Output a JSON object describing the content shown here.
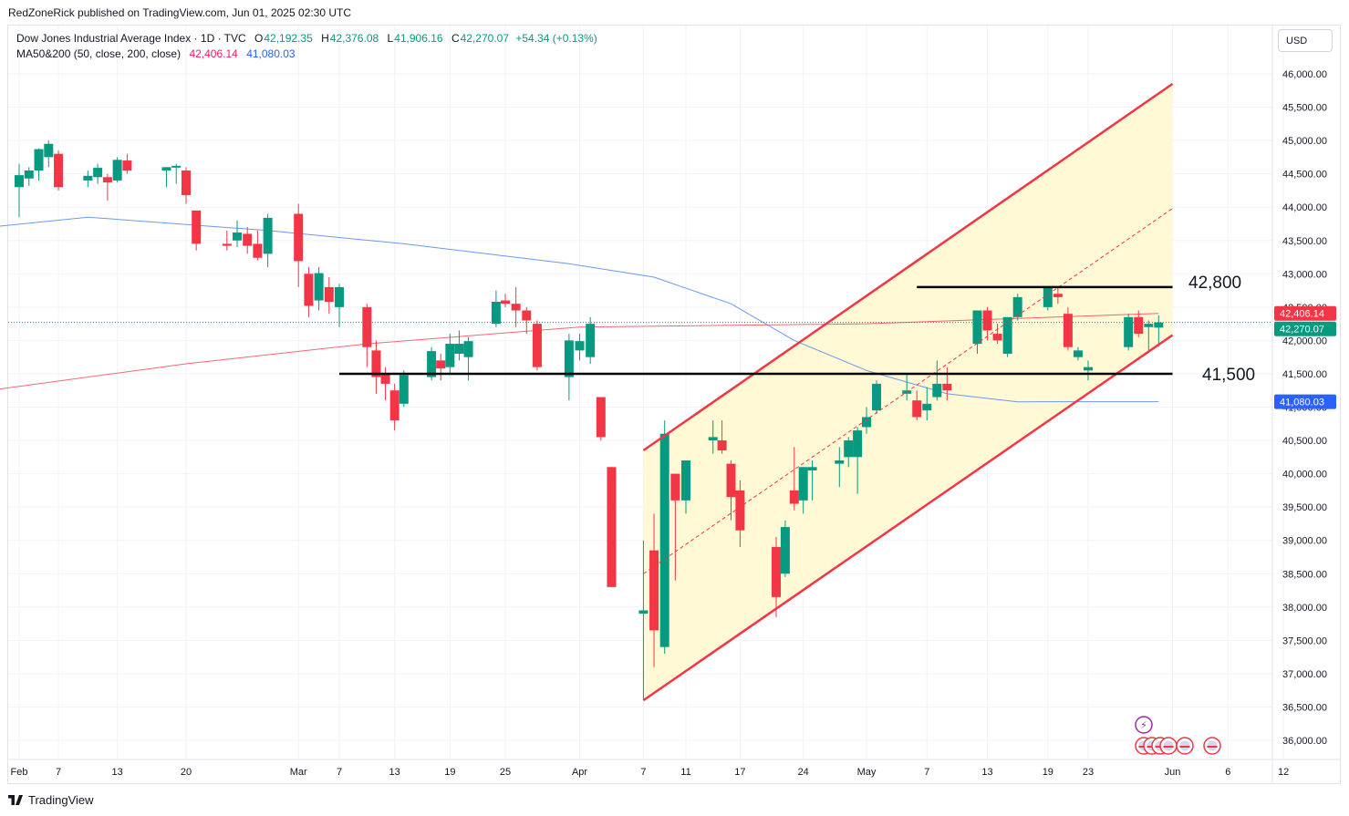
{
  "publisher_line": "RedZoneRick published on TradingView.com, Jun 01, 2025 02:30 UTC",
  "legend": {
    "symbol": "Dow Jones Industrial Average Index · 1D · TVC",
    "open_label": "O",
    "open": "42,192.35",
    "high_label": "H",
    "high": "42,376.08",
    "low_label": "L",
    "low": "41,906.16",
    "close_label": "C",
    "close": "42,270.07",
    "change": "+54.34 (+0.13%)",
    "ma_label": "MA50&200 (50, close, 200, close)",
    "ma200_value": "42,406.14",
    "ma50_value": "41,080.03"
  },
  "currency": "USD",
  "footer_logo": "TradingView",
  "colors": {
    "up": "#089981",
    "down": "#f23645",
    "ma200": "#f23645",
    "ma50": "#5b8def",
    "channel": "#f23645",
    "channel_fill": "#fff9d6"
  },
  "chart_data": {
    "type": "candlestick",
    "title": "Dow Jones Industrial Average Index · 1D · TVC",
    "ylim": [
      35900,
      46300
    ],
    "y_ticks": [
      36000,
      36500,
      37000,
      37500,
      38000,
      38500,
      39000,
      39500,
      40000,
      40500,
      41000,
      41500,
      42000,
      42500,
      43000,
      43500,
      44000,
      44500,
      45000,
      45500,
      46000
    ],
    "y_tick_labels": [
      "36,000.00",
      "36,500.00",
      "37,000.00",
      "37,500.00",
      "38,000.00",
      "38,500.00",
      "39,000.00",
      "39,500.00",
      "40,000.00",
      "40,500.00",
      "41,000.00",
      "41,500.00",
      "42,000.00",
      "42,500.00",
      "43,000.00",
      "43,500.00",
      "44,000.00",
      "44,500.00",
      "45,000.00",
      "45,500.00",
      "46,000.00"
    ],
    "x_ticks": [
      {
        "label": "Feb",
        "date": "2025-02-03"
      },
      {
        "label": "7",
        "date": "2025-02-07"
      },
      {
        "label": "13",
        "date": "2025-02-13"
      },
      {
        "label": "20",
        "date": "2025-02-20"
      },
      {
        "label": "Mar",
        "date": "2025-03-03"
      },
      {
        "label": "7",
        "date": "2025-03-07"
      },
      {
        "label": "13",
        "date": "2025-03-13"
      },
      {
        "label": "19",
        "date": "2025-03-19"
      },
      {
        "label": "25",
        "date": "2025-03-25"
      },
      {
        "label": "Apr",
        "date": "2025-04-01"
      },
      {
        "label": "7",
        "date": "2025-04-07"
      },
      {
        "label": "11",
        "date": "2025-04-11"
      },
      {
        "label": "17",
        "date": "2025-04-17"
      },
      {
        "label": "24",
        "date": "2025-04-24"
      },
      {
        "label": "May",
        "date": "2025-05-01"
      },
      {
        "label": "7",
        "date": "2025-05-07"
      },
      {
        "label": "13",
        "date": "2025-05-13"
      },
      {
        "label": "19",
        "date": "2025-05-19"
      },
      {
        "label": "23",
        "date": "2025-05-23"
      },
      {
        "label": "Jun",
        "date": "2025-06-02"
      },
      {
        "label": "6",
        "date": "2025-06-06"
      },
      {
        "label": "12",
        "date": "2025-06-12"
      }
    ],
    "candles": [
      {
        "d": "2025-02-03",
        "o": 44300,
        "h": 44650,
        "l": 43850,
        "c": 44480
      },
      {
        "d": "2025-02-04",
        "o": 44430,
        "h": 44600,
        "l": 44320,
        "c": 44550
      },
      {
        "d": "2025-02-05",
        "o": 44550,
        "h": 44880,
        "l": 44400,
        "c": 44870
      },
      {
        "d": "2025-02-06",
        "o": 44750,
        "h": 45000,
        "l": 44600,
        "c": 44950
      },
      {
        "d": "2025-02-07",
        "o": 44800,
        "h": 44850,
        "l": 44250,
        "c": 44300
      },
      {
        "d": "2025-02-10",
        "o": 44400,
        "h": 44550,
        "l": 44300,
        "c": 44470
      },
      {
        "d": "2025-02-11",
        "o": 44450,
        "h": 44650,
        "l": 44350,
        "c": 44590
      },
      {
        "d": "2025-02-12",
        "o": 44450,
        "h": 44500,
        "l": 44100,
        "c": 44370
      },
      {
        "d": "2025-02-13",
        "o": 44400,
        "h": 44750,
        "l": 44370,
        "c": 44710
      },
      {
        "d": "2025-02-14",
        "o": 44700,
        "h": 44800,
        "l": 44500,
        "c": 44550
      },
      {
        "d": "2025-02-18",
        "o": 44550,
        "h": 44600,
        "l": 44300,
        "c": 44600
      },
      {
        "d": "2025-02-19",
        "o": 44600,
        "h": 44650,
        "l": 44350,
        "c": 44620
      },
      {
        "d": "2025-02-20",
        "o": 44550,
        "h": 44600,
        "l": 44050,
        "c": 44180
      },
      {
        "d": "2025-02-21",
        "o": 43950,
        "h": 43950,
        "l": 43350,
        "c": 43450
      },
      {
        "d": "2025-02-24",
        "o": 43450,
        "h": 43650,
        "l": 43350,
        "c": 43420
      },
      {
        "d": "2025-02-25",
        "o": 43500,
        "h": 43800,
        "l": 43400,
        "c": 43620
      },
      {
        "d": "2025-02-26",
        "o": 43600,
        "h": 43700,
        "l": 43300,
        "c": 43420
      },
      {
        "d": "2025-02-27",
        "o": 43450,
        "h": 43650,
        "l": 43200,
        "c": 43240
      },
      {
        "d": "2025-02-28",
        "o": 43300,
        "h": 43900,
        "l": 43100,
        "c": 43840
      },
      {
        "d": "2025-03-03",
        "o": 43900,
        "h": 44050,
        "l": 42800,
        "c": 43190
      },
      {
        "d": "2025-03-04",
        "o": 43000,
        "h": 43100,
        "l": 42350,
        "c": 42520
      },
      {
        "d": "2025-03-05",
        "o": 42600,
        "h": 43100,
        "l": 42450,
        "c": 43010
      },
      {
        "d": "2025-03-06",
        "o": 42800,
        "h": 42950,
        "l": 42400,
        "c": 42580
      },
      {
        "d": "2025-03-07",
        "o": 42500,
        "h": 42850,
        "l": 42200,
        "c": 42800
      },
      {
        "d": "2025-03-10",
        "o": 42500,
        "h": 42550,
        "l": 41600,
        "c": 41900
      },
      {
        "d": "2025-03-11",
        "o": 41850,
        "h": 42000,
        "l": 41200,
        "c": 41450
      },
      {
        "d": "2025-03-12",
        "o": 41500,
        "h": 41600,
        "l": 41100,
        "c": 41350
      },
      {
        "d": "2025-03-13",
        "o": 41250,
        "h": 41350,
        "l": 40650,
        "c": 40800
      },
      {
        "d": "2025-03-14",
        "o": 41050,
        "h": 41550,
        "l": 41000,
        "c": 41480
      },
      {
        "d": "2025-03-17",
        "o": 41450,
        "h": 41900,
        "l": 41400,
        "c": 41840
      },
      {
        "d": "2025-03-18",
        "o": 41700,
        "h": 41800,
        "l": 41400,
        "c": 41580
      },
      {
        "d": "2025-03-19",
        "o": 41600,
        "h": 42100,
        "l": 41500,
        "c": 41950
      },
      {
        "d": "2025-03-20",
        "o": 41800,
        "h": 42150,
        "l": 41700,
        "c": 41950
      },
      {
        "d": "2025-03-21",
        "o": 41750,
        "h": 42050,
        "l": 41400,
        "c": 41990
      },
      {
        "d": "2025-03-24",
        "o": 42250,
        "h": 42750,
        "l": 42200,
        "c": 42580
      },
      {
        "d": "2025-03-25",
        "o": 42600,
        "h": 42700,
        "l": 42500,
        "c": 42550
      },
      {
        "d": "2025-03-26",
        "o": 42550,
        "h": 42800,
        "l": 42200,
        "c": 42450
      },
      {
        "d": "2025-03-27",
        "o": 42450,
        "h": 42500,
        "l": 42100,
        "c": 42300
      },
      {
        "d": "2025-03-28",
        "o": 42250,
        "h": 42300,
        "l": 41550,
        "c": 41600
      },
      {
        "d": "2025-03-31",
        "o": 41450,
        "h": 42100,
        "l": 41100,
        "c": 42000
      },
      {
        "d": "2025-04-01",
        "o": 41850,
        "h": 42100,
        "l": 41700,
        "c": 41990
      },
      {
        "d": "2025-04-02",
        "o": 41750,
        "h": 42350,
        "l": 41650,
        "c": 42250
      },
      {
        "d": "2025-04-03",
        "o": 41150,
        "h": 41150,
        "l": 40500,
        "c": 40550
      },
      {
        "d": "2025-04-04",
        "o": 40100,
        "h": 40100,
        "l": 38300,
        "c": 38300
      },
      {
        "d": "2025-04-07",
        "o": 37900,
        "h": 39000,
        "l": 36600,
        "c": 37950
      },
      {
        "d": "2025-04-08",
        "o": 38850,
        "h": 39400,
        "l": 37100,
        "c": 37650
      },
      {
        "d": "2025-04-09",
        "o": 37400,
        "h": 40800,
        "l": 37300,
        "c": 40600
      },
      {
        "d": "2025-04-10",
        "o": 40000,
        "h": 40000,
        "l": 38400,
        "c": 39600
      },
      {
        "d": "2025-04-11",
        "o": 39600,
        "h": 40200,
        "l": 39400,
        "c": 40200
      },
      {
        "d": "2025-04-14",
        "o": 40500,
        "h": 40800,
        "l": 40300,
        "c": 40550
      },
      {
        "d": "2025-04-15",
        "o": 40500,
        "h": 40800,
        "l": 40300,
        "c": 40350
      },
      {
        "d": "2025-04-16",
        "o": 40150,
        "h": 40200,
        "l": 39300,
        "c": 39650
      },
      {
        "d": "2025-04-17",
        "o": 39750,
        "h": 39900,
        "l": 38900,
        "c": 39150
      },
      {
        "d": "2025-04-21",
        "o": 38900,
        "h": 39050,
        "l": 37850,
        "c": 38150
      },
      {
        "d": "2025-04-22",
        "o": 38500,
        "h": 39300,
        "l": 38450,
        "c": 39200
      },
      {
        "d": "2025-04-23",
        "o": 39750,
        "h": 40400,
        "l": 39450,
        "c": 39550
      },
      {
        "d": "2025-04-24",
        "o": 39600,
        "h": 40100,
        "l": 39400,
        "c": 40100
      },
      {
        "d": "2025-04-25",
        "o": 40050,
        "h": 40200,
        "l": 39600,
        "c": 40100
      },
      {
        "d": "2025-04-28",
        "o": 40150,
        "h": 40400,
        "l": 39800,
        "c": 40200
      },
      {
        "d": "2025-04-29",
        "o": 40250,
        "h": 40550,
        "l": 40100,
        "c": 40500
      },
      {
        "d": "2025-04-30",
        "o": 40250,
        "h": 40700,
        "l": 39700,
        "c": 40650
      },
      {
        "d": "2025-05-01",
        "o": 40700,
        "h": 41000,
        "l": 40600,
        "c": 40850
      },
      {
        "d": "2025-05-02",
        "o": 40950,
        "h": 41400,
        "l": 40900,
        "c": 41350
      },
      {
        "d": "2025-05-05",
        "o": 41200,
        "h": 41500,
        "l": 41100,
        "c": 41250
      },
      {
        "d": "2025-05-06",
        "o": 41100,
        "h": 41250,
        "l": 40800,
        "c": 40850
      },
      {
        "d": "2025-05-07",
        "o": 40950,
        "h": 41300,
        "l": 40800,
        "c": 41050
      },
      {
        "d": "2025-05-08",
        "o": 41150,
        "h": 41700,
        "l": 41100,
        "c": 41350
      },
      {
        "d": "2025-05-09",
        "o": 41350,
        "h": 41600,
        "l": 41100,
        "c": 41250
      },
      {
        "d": "2025-05-12",
        "o": 41950,
        "h": 42450,
        "l": 41800,
        "c": 42450
      },
      {
        "d": "2025-05-13",
        "o": 42450,
        "h": 42500,
        "l": 42000,
        "c": 42150
      },
      {
        "d": "2025-05-14",
        "o": 42100,
        "h": 42250,
        "l": 41950,
        "c": 42000
      },
      {
        "d": "2025-05-15",
        "o": 41800,
        "h": 42350,
        "l": 41750,
        "c": 42350
      },
      {
        "d": "2025-05-16",
        "o": 42350,
        "h": 42700,
        "l": 42300,
        "c": 42650
      },
      {
        "d": "2025-05-19",
        "o": 42500,
        "h": 42800,
        "l": 42450,
        "c": 42800
      },
      {
        "d": "2025-05-20",
        "o": 42700,
        "h": 42800,
        "l": 42550,
        "c": 42650
      },
      {
        "d": "2025-05-21",
        "o": 42400,
        "h": 42500,
        "l": 41850,
        "c": 41900
      },
      {
        "d": "2025-05-22",
        "o": 41750,
        "h": 41900,
        "l": 41700,
        "c": 41850
      },
      {
        "d": "2025-05-23",
        "o": 41550,
        "h": 41700,
        "l": 41400,
        "c": 41600
      },
      {
        "d": "2025-05-27",
        "o": 41900,
        "h": 42400,
        "l": 41850,
        "c": 42350
      },
      {
        "d": "2025-05-28",
        "o": 42350,
        "h": 42450,
        "l": 42050,
        "c": 42100
      },
      {
        "d": "2025-05-29",
        "o": 42200,
        "h": 42300,
        "l": 41850,
        "c": 42250
      },
      {
        "d": "2025-05-30",
        "o": 42192.35,
        "h": 42376.08,
        "l": 41906.16,
        "c": 42270.07
      }
    ],
    "series": [
      {
        "name": "MA 200",
        "points": [
          [
            "2025-01-31",
            41250
          ],
          [
            "2025-02-20",
            41650
          ],
          [
            "2025-03-10",
            41950
          ],
          [
            "2025-04-01",
            42200
          ],
          [
            "2025-05-01",
            42250
          ],
          [
            "2025-05-30",
            42406.14
          ]
        ]
      },
      {
        "name": "MA 50",
        "points": [
          [
            "2025-01-31",
            43700
          ],
          [
            "2025-02-10",
            43850
          ],
          [
            "2025-02-28",
            43650
          ],
          [
            "2025-03-14",
            43450
          ],
          [
            "2025-03-31",
            43150
          ],
          [
            "2025-04-08",
            42950
          ],
          [
            "2025-04-16",
            42550
          ],
          [
            "2025-04-23",
            42000
          ],
          [
            "2025-05-01",
            41550
          ],
          [
            "2025-05-09",
            41200
          ],
          [
            "2025-05-16",
            41080
          ],
          [
            "2025-05-30",
            41080.03
          ]
        ]
      }
    ],
    "annotations": {
      "resistance": {
        "value": 42800,
        "label": "42,800",
        "from": "2025-05-06",
        "to": "2025-06-02"
      },
      "support": {
        "value": 41500,
        "label": "41,500",
        "from": "2025-03-07",
        "to": "2025-06-02"
      },
      "channel_upper": [
        [
          "2025-04-07",
          40350
        ],
        [
          "2025-06-02",
          45850
        ]
      ],
      "channel_lower": [
        [
          "2025-04-07",
          36600
        ],
        [
          "2025-06-02",
          42080
        ]
      ],
      "channel_mid": [
        [
          "2025-04-07",
          38500
        ],
        [
          "2025-06-02",
          43980
        ]
      ]
    },
    "price_labels": {
      "ma200": "42,406.14",
      "last": "42,270.07",
      "ma50": "41,080.03"
    },
    "event_icons": [
      "dividend",
      "earnings",
      "earnings",
      "earnings",
      "earnings",
      "earnings"
    ]
  }
}
